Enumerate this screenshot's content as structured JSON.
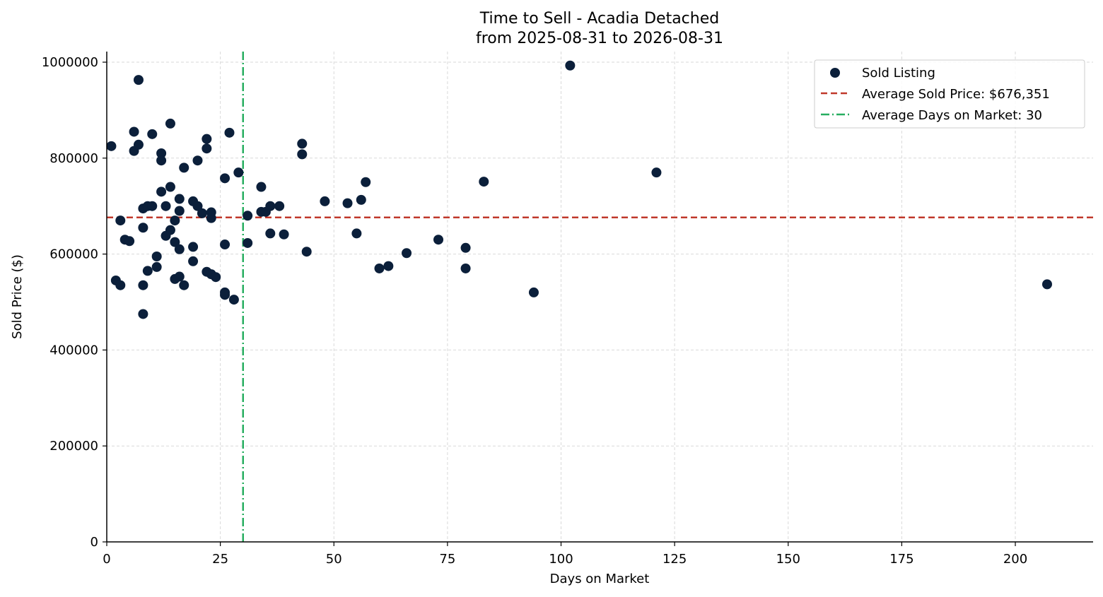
{
  "chart_data": {
    "type": "scatter",
    "title": "Time to Sell - Acadia Detached",
    "subtitle": "from 2025-08-31 to 2026-08-31",
    "xlabel": "Days on Market",
    "ylabel": "Sold Price ($)",
    "xlim": [
      0,
      217
    ],
    "ylim": [
      0,
      1020000
    ],
    "xticks": [
      0,
      25,
      50,
      75,
      100,
      125,
      150,
      175,
      200
    ],
    "yticks": [
      0,
      200000,
      400000,
      600000,
      800000,
      1000000
    ],
    "grid": true,
    "legend_position": "top-right",
    "colors": {
      "points": "#0b1f3a",
      "avg_price": "#c0392b",
      "avg_days": "#27ae60"
    },
    "series": [
      {
        "name": "Sold Listing",
        "points": [
          [
            1,
            825000
          ],
          [
            2,
            545000
          ],
          [
            3,
            670000
          ],
          [
            3,
            535000
          ],
          [
            4,
            630000
          ],
          [
            5,
            627000
          ],
          [
            6,
            855000
          ],
          [
            6,
            815000
          ],
          [
            7,
            963000
          ],
          [
            7,
            828000
          ],
          [
            8,
            695000
          ],
          [
            8,
            655000
          ],
          [
            8,
            535000
          ],
          [
            8,
            475000
          ],
          [
            9,
            700000
          ],
          [
            9,
            565000
          ],
          [
            10,
            850000
          ],
          [
            10,
            700000
          ],
          [
            11,
            595000
          ],
          [
            11,
            573000
          ],
          [
            12,
            810000
          ],
          [
            12,
            795000
          ],
          [
            12,
            730000
          ],
          [
            13,
            700000
          ],
          [
            13,
            638000
          ],
          [
            14,
            872000
          ],
          [
            14,
            740000
          ],
          [
            14,
            650000
          ],
          [
            15,
            670000
          ],
          [
            15,
            625000
          ],
          [
            15,
            548000
          ],
          [
            16,
            715000
          ],
          [
            16,
            690000
          ],
          [
            16,
            610000
          ],
          [
            16,
            553000
          ],
          [
            17,
            780000
          ],
          [
            17,
            535000
          ],
          [
            19,
            710000
          ],
          [
            19,
            615000
          ],
          [
            19,
            585000
          ],
          [
            20,
            795000
          ],
          [
            20,
            700000
          ],
          [
            21,
            685000
          ],
          [
            22,
            840000
          ],
          [
            22,
            820000
          ],
          [
            22,
            563000
          ],
          [
            23,
            687000
          ],
          [
            23,
            675000
          ],
          [
            23,
            558000
          ],
          [
            24,
            552000
          ],
          [
            26,
            758000
          ],
          [
            26,
            620000
          ],
          [
            26,
            520000
          ],
          [
            26,
            515000
          ],
          [
            27,
            853000
          ],
          [
            28,
            505000
          ],
          [
            29,
            770000
          ],
          [
            31,
            680000
          ],
          [
            31,
            623000
          ],
          [
            34,
            740000
          ],
          [
            34,
            688000
          ],
          [
            35,
            688000
          ],
          [
            36,
            700000
          ],
          [
            36,
            643000
          ],
          [
            38,
            700000
          ],
          [
            39,
            641000
          ],
          [
            43,
            830000
          ],
          [
            43,
            808000
          ],
          [
            44,
            605000
          ],
          [
            48,
            710000
          ],
          [
            53,
            706000
          ],
          [
            55,
            643000
          ],
          [
            56,
            713000
          ],
          [
            57,
            750000
          ],
          [
            60,
            570000
          ],
          [
            62,
            575000
          ],
          [
            66,
            602000
          ],
          [
            73,
            630000
          ],
          [
            79,
            613000
          ],
          [
            79,
            570000
          ],
          [
            83,
            751000
          ],
          [
            94,
            520000
          ],
          [
            102,
            993000
          ],
          [
            121,
            770000
          ],
          [
            207,
            537000
          ]
        ]
      }
    ],
    "average_price": {
      "value": 676351,
      "label": "Average Sold Price: $676,351"
    },
    "average_days": {
      "value": 30,
      "label": "Average Days on Market: 30"
    }
  }
}
